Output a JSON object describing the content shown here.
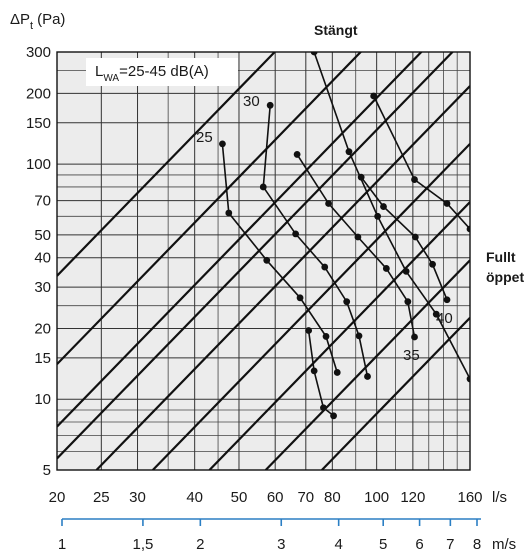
{
  "chart_data": {
    "type": "line",
    "y_axis": {
      "label_main": "ΔP",
      "label_sub": "t",
      "label_unit": "(Pa)",
      "scale": "log",
      "range": [
        5,
        300
      ],
      "ticks": [
        5,
        10,
        15,
        20,
        30,
        40,
        50,
        70,
        100,
        150,
        200,
        300
      ],
      "minor_gridlines": [
        6,
        7,
        8,
        9,
        25,
        60,
        80,
        90,
        250
      ]
    },
    "x_axis": {
      "label": "l/s",
      "scale": "log",
      "range": [
        20,
        160
      ],
      "ticks": [
        20,
        25,
        30,
        40,
        50,
        60,
        70,
        80,
        100,
        120,
        160
      ],
      "minor_gridlines": [
        35,
        45,
        90,
        110,
        130,
        140,
        150
      ]
    },
    "x2_axis": {
      "label": "m/s",
      "scale": "log",
      "range": [
        1,
        8
      ],
      "ticks": [
        "1",
        "1,5",
        "2",
        "3",
        "4",
        "5",
        "6",
        "7",
        "8"
      ],
      "tick_values": [
        1,
        1.5,
        2,
        3,
        4,
        5,
        6,
        7,
        8
      ]
    },
    "annotation_lwa_main": "L",
    "annotation_lwa_sub": "WA",
    "annotation_lwa_rest": "=25-45 dB(A)",
    "label_closed": "Stängt",
    "label_open_line1": "Fullt",
    "label_open_line2": "öppet",
    "diagonal_lines": [
      {
        "x": [
          20,
          160
        ],
        "y": [
          33.5,
          2144
        ]
      },
      {
        "x": [
          20,
          160
        ],
        "y": [
          14.1,
          902
        ]
      },
      {
        "x": [
          20,
          160
        ],
        "y": [
          7.65,
          490
        ]
      },
      {
        "x": [
          20,
          160
        ],
        "y": [
          5.6,
          358
        ]
      },
      {
        "x": [
          24.4,
          160
        ],
        "y": [
          5,
          215
        ]
      },
      {
        "x": [
          32.4,
          160
        ],
        "y": [
          5,
          122
        ]
      },
      {
        "x": [
          43.1,
          160
        ],
        "y": [
          5,
          69
        ]
      },
      {
        "x": [
          57.2,
          160
        ],
        "y": [
          5,
          39
        ]
      },
      {
        "x": [
          75.9,
          160
        ],
        "y": [
          5,
          22.2
        ]
      }
    ],
    "curves": [
      {
        "name": "25",
        "x": [
          46.0,
          47.5,
          57.5,
          68.0,
          77.5,
          82.0
        ],
        "y": [
          122,
          62,
          39,
          27,
          18.5,
          13.0
        ]
      },
      {
        "name": "30",
        "x": [
          58.5,
          56.5,
          66.5,
          77.0,
          86.0,
          91.5,
          95.5
        ],
        "y": [
          178,
          80,
          50.5,
          36.5,
          26,
          18.6,
          12.5
        ]
      },
      {
        "name": "35",
        "x": [
          67.0,
          78.5,
          91.0,
          105.0,
          117.0,
          121.0
        ],
        "y": [
          110,
          68,
          49,
          36,
          26,
          18.4
        ]
      },
      {
        "name": "40",
        "x": [
          92.5,
          103.5,
          121.5,
          132.5,
          142.5
        ],
        "y": [
          88,
          66,
          49,
          37.5,
          26.5
        ]
      },
      {
        "name": "",
        "x": [
          98.5,
          121.0,
          142.5,
          160.0
        ],
        "y": [
          195,
          86,
          68,
          53
        ]
      },
      {
        "name": "",
        "x": [
          80.5,
          76.5,
          73.0,
          71.0
        ],
        "y": [
          8.5,
          9.2,
          13.2,
          19.6
        ]
      },
      {
        "name": "",
        "x": [
          73.0,
          87.0,
          100.5,
          116.0,
          135.0,
          160.0
        ],
        "y": [
          300,
          113,
          60,
          35,
          23,
          12.2
        ]
      }
    ],
    "label_25": "25",
    "label_30": "30",
    "label_35": "35",
    "label_40": "40"
  }
}
